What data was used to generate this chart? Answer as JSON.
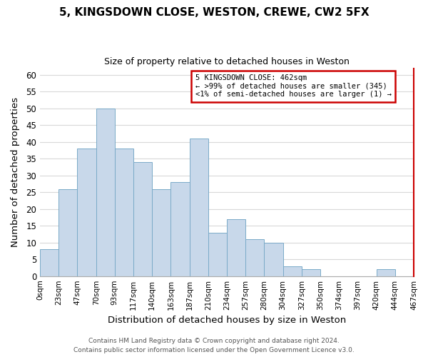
{
  "title": "5, KINGSDOWN CLOSE, WESTON, CREWE, CW2 5FX",
  "subtitle": "Size of property relative to detached houses in Weston",
  "xlabel": "Distribution of detached houses by size in Weston",
  "ylabel": "Number of detached properties",
  "bar_labels": [
    "0sqm",
    "23sqm",
    "47sqm",
    "70sqm",
    "93sqm",
    "117sqm",
    "140sqm",
    "163sqm",
    "187sqm",
    "210sqm",
    "234sqm",
    "257sqm",
    "280sqm",
    "304sqm",
    "327sqm",
    "350sqm",
    "374sqm",
    "397sqm",
    "420sqm",
    "444sqm",
    "467sqm"
  ],
  "bar_values": [
    8,
    26,
    38,
    50,
    38,
    34,
    26,
    28,
    41,
    13,
    17,
    11,
    10,
    3,
    2,
    0,
    0,
    0,
    2,
    0
  ],
  "bar_color": "#c8d8ea",
  "bar_edge_color": "#7aaac8",
  "ylim": [
    0,
    62
  ],
  "yticks": [
    0,
    5,
    10,
    15,
    20,
    25,
    30,
    35,
    40,
    45,
    50,
    55,
    60
  ],
  "annotation_box_text_line1": "5 KINGSDOWN CLOSE: 462sqm",
  "annotation_box_text_line2": "← >99% of detached houses are smaller (345)",
  "annotation_box_text_line3": "<1% of semi-detached houses are larger (1) →",
  "annotation_box_color": "#ffffff",
  "annotation_box_border": "#cc0000",
  "red_line_color": "#cc0000",
  "footer_line1": "Contains HM Land Registry data © Crown copyright and database right 2024.",
  "footer_line2": "Contains public sector information licensed under the Open Government Licence v3.0.",
  "background_color": "#ffffff",
  "grid_color": "#d8d8d8"
}
